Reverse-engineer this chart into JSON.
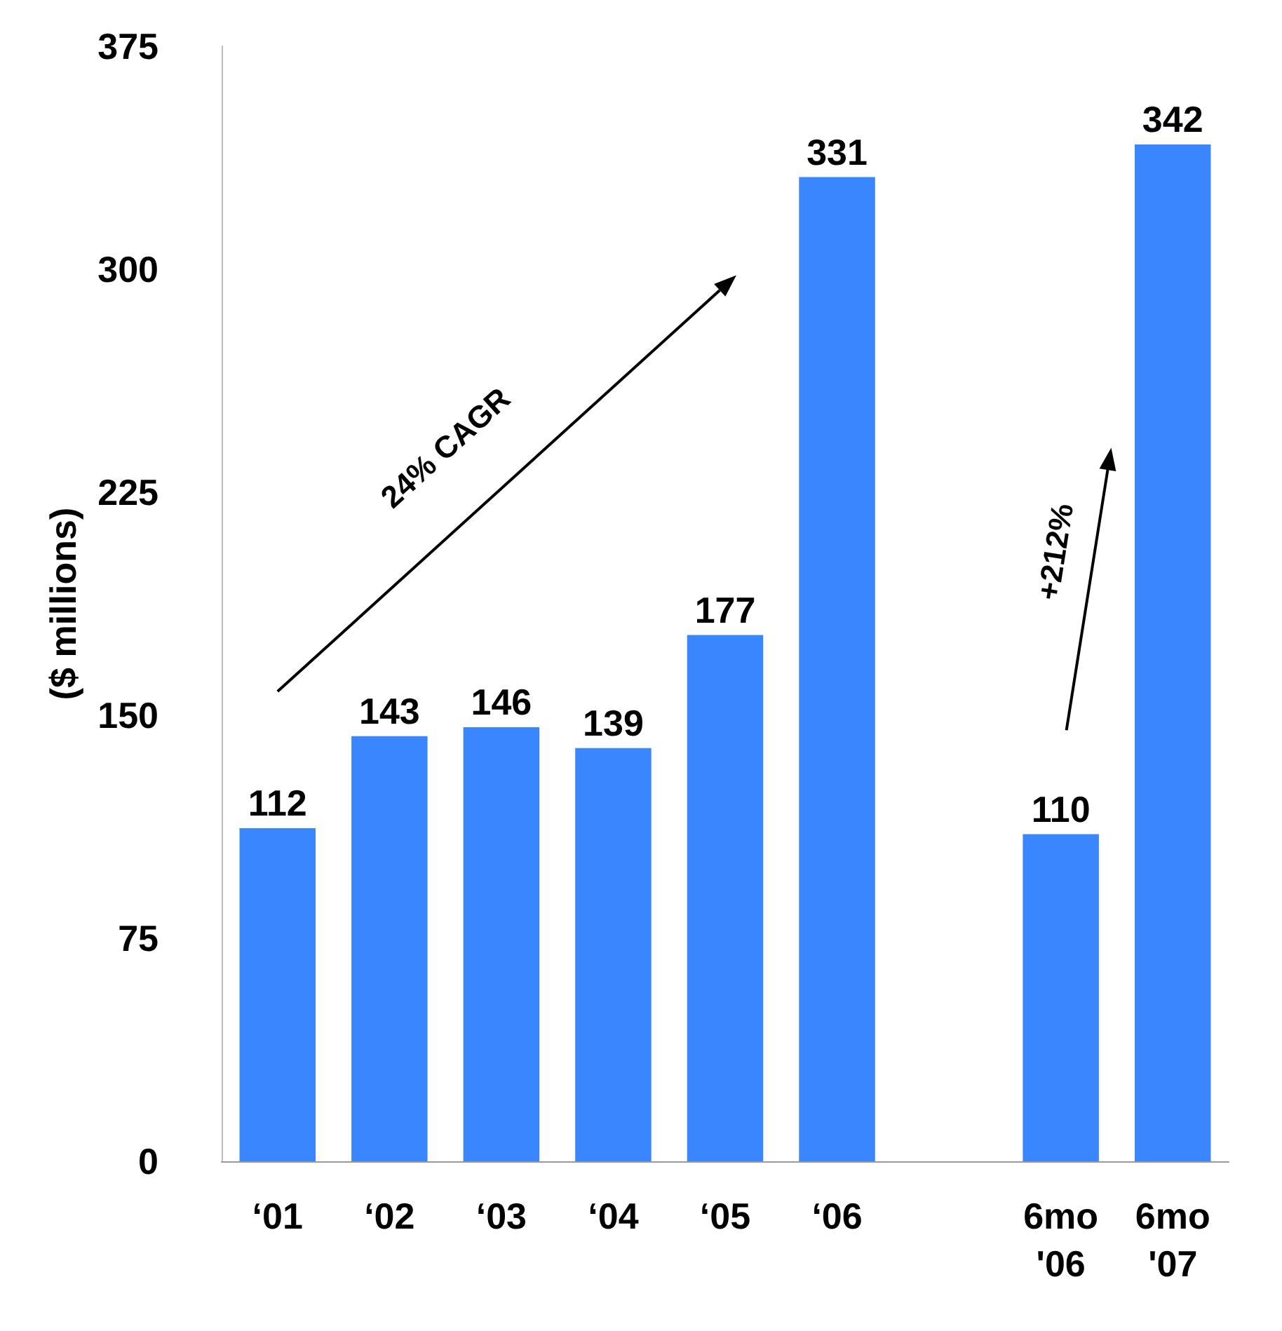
{
  "chart_data": {
    "type": "bar",
    "ylabel": "($ millions)",
    "categories": [
      "‘01",
      "‘02",
      "‘03",
      "‘04",
      "‘05",
      "‘06",
      null,
      "6mo\n'06",
      "6mo\n'07"
    ],
    "values": [
      112,
      143,
      146,
      139,
      177,
      331,
      null,
      110,
      342
    ],
    "color": "#3a86ff",
    "ylim": [
      0,
      375
    ],
    "yticks": [
      0,
      75,
      150,
      225,
      300,
      375
    ],
    "grid": false,
    "data_labels": true,
    "annotations": [
      "24% CAGR",
      "+212%"
    ]
  }
}
